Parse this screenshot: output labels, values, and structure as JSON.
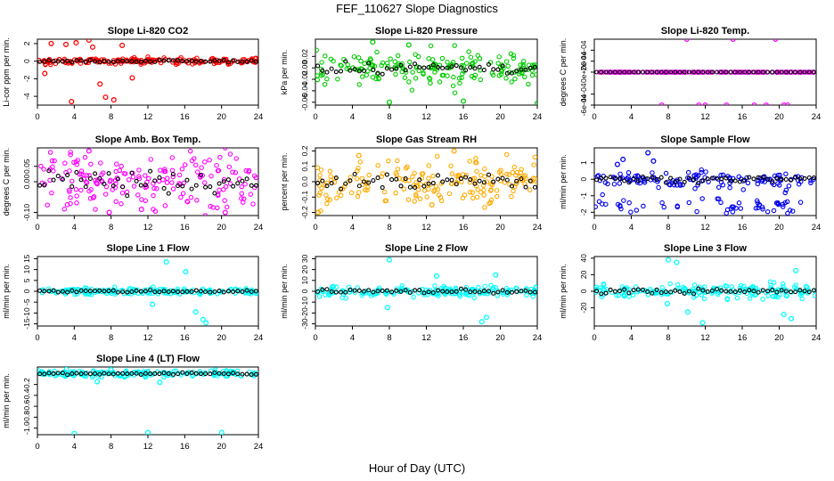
{
  "figure": {
    "title": "FEF_110627  Slope Diagnostics",
    "xlabel": "Hour of Day (UTC)"
  },
  "chart_data": [
    {
      "type": "scatter",
      "title": "Slope Li-820 CO2",
      "ylabel": "Li-cor ppm per min.",
      "color": "#ff0000",
      "xlim": [
        0,
        24
      ],
      "xticks": [
        0,
        4,
        8,
        12,
        16,
        20,
        24
      ],
      "ylim": [
        -5,
        2.5
      ],
      "yticks": [
        -4,
        -2,
        0,
        2
      ],
      "ytick_labels": [
        "-4",
        "-2",
        "0",
        "2"
      ],
      "noise": 0.18,
      "outliers": [
        [
          1.5,
          2.0
        ],
        [
          3.1,
          1.9
        ],
        [
          4.2,
          2.1
        ],
        [
          5.6,
          2.4
        ],
        [
          6.8,
          -2.6
        ],
        [
          7.4,
          -4.1
        ],
        [
          8.3,
          -4.4
        ],
        [
          3.7,
          -4.6
        ],
        [
          0.8,
          -1.4
        ],
        [
          6.0,
          1.6
        ],
        [
          9.2,
          1.8
        ],
        [
          10.3,
          -1.9
        ]
      ]
    },
    {
      "type": "scatter",
      "title": "Slope Li-820 Pressure",
      "ylabel": "kPa per min.",
      "color": "#00cc00",
      "xlim": [
        0,
        24
      ],
      "xticks": [
        0,
        4,
        8,
        12,
        16,
        20,
        24
      ],
      "ylim": [
        -0.065,
        0.05
      ],
      "yticks": [
        -0.06,
        -0.04,
        -0.02,
        0.0,
        0.02
      ],
      "ytick_labels": [
        "-0.06",
        "-0.04",
        "-0.02",
        "0.00",
        "0.02"
      ],
      "noise": 0.015,
      "outliers": [
        [
          8.0,
          -0.06
        ],
        [
          16.0,
          -0.058
        ],
        [
          24.0,
          -0.062
        ],
        [
          6.2,
          0.045
        ],
        [
          10.1,
          0.04
        ]
      ]
    },
    {
      "type": "scatter",
      "title": "Slope Li-820 Temp.",
      "ylabel": "degrees C per min.",
      "color": "#ff00ff",
      "xlim": [
        0,
        24
      ],
      "xticks": [
        0,
        4,
        8,
        12,
        16,
        20,
        24
      ],
      "ylim": [
        -0.0006,
        0.0006
      ],
      "yticks": [
        -0.0006,
        -0.0004,
        0.0,
        0.0002,
        0.0004
      ],
      "ytick_labels": [
        "-6e-04",
        "-4e-04",
        "0e+00",
        "2e-04",
        "4e-04"
      ],
      "noise": 0.0,
      "outliers": [
        [
          10.0,
          0.0006
        ],
        [
          15.0,
          0.0006
        ],
        [
          19.6,
          0.0006
        ],
        [
          7.3,
          -0.0006
        ],
        [
          11.3,
          -0.0006
        ],
        [
          12.0,
          -0.0006
        ],
        [
          14.3,
          -0.0006
        ],
        [
          17.3,
          -0.0006
        ],
        [
          18.6,
          -0.0006
        ],
        [
          20.5,
          -0.0006
        ],
        [
          20.9,
          -0.0006
        ]
      ]
    },
    {
      "type": "scatter",
      "title": "Slope Amb. Box Temp.",
      "ylabel": "degrees C per min.",
      "color": "#ff00ff",
      "xlim": [
        0,
        24
      ],
      "xticks": [
        0,
        4,
        8,
        12,
        16,
        20,
        24
      ],
      "ylim": [
        -0.11,
        0.11
      ],
      "yticks": [
        -0.1,
        0.0,
        0.05
      ],
      "ytick_labels": [
        "-0.10",
        "0.00",
        "0.05"
      ],
      "noise": 0.05,
      "outliers": [
        [
          5.6,
          0.1
        ],
        [
          11.3,
          -0.09
        ],
        [
          7.8,
          -0.1
        ],
        [
          20.4,
          -0.1
        ]
      ]
    },
    {
      "type": "scatter",
      "title": "Slope Gas Stream RH",
      "ylabel": "percent per min.",
      "color": "#ffaa00",
      "xlim": [
        0,
        24
      ],
      "xticks": [
        0,
        4,
        8,
        12,
        16,
        20,
        24
      ],
      "ylim": [
        -0.22,
        0.22
      ],
      "yticks": [
        -0.2,
        -0.1,
        0.0,
        0.1,
        0.2
      ],
      "ytick_labels": [
        "-0.2",
        "-0.1",
        "0.0",
        "0.1",
        "0.2"
      ],
      "noise": 0.07,
      "outliers": [
        [
          0.3,
          -0.2
        ],
        [
          15.0,
          0.2
        ],
        [
          4.7,
          0.17
        ],
        [
          12.6,
          -0.15
        ]
      ]
    },
    {
      "type": "scatter",
      "title": "Slope Sample Flow",
      "ylabel": "ml/min per min.",
      "color": "#0000ee",
      "xlim": [
        0,
        24
      ],
      "xticks": [
        0,
        4,
        8,
        12,
        16,
        20,
        24
      ],
      "ylim": [
        -2.2,
        1.9
      ],
      "yticks": [
        -2,
        -1,
        0,
        1
      ],
      "ytick_labels": [
        "-2",
        "-1",
        "0",
        "1"
      ],
      "noise": 0.25,
      "outliers": [
        [
          3.1,
          1.2
        ],
        [
          5.8,
          1.6
        ],
        [
          2.5,
          0.9
        ],
        [
          6.4,
          1.1
        ]
      ]
    },
    {
      "type": "scatter",
      "title": "Slope Line 1 Flow",
      "ylabel": "ml/min per min.",
      "color": "#00ffff",
      "xlim": [
        0,
        24
      ],
      "xticks": [
        0,
        4,
        8,
        12,
        16,
        20,
        24
      ],
      "ylim": [
        -16,
        16
      ],
      "yticks": [
        -15,
        -10,
        -5,
        0,
        5,
        10,
        15
      ],
      "ytick_labels": [
        "-15",
        "-10",
        "-5",
        "0",
        "5",
        "10",
        "15"
      ],
      "noise": 0.8,
      "outliers": [
        [
          14.0,
          13.5
        ],
        [
          18.0,
          -13.0
        ],
        [
          18.3,
          -14.5
        ],
        [
          12.5,
          -6.0
        ],
        [
          16.1,
          9.0
        ],
        [
          17.2,
          -9.5
        ]
      ]
    },
    {
      "type": "scatter",
      "title": "Slope Line 2 Flow",
      "ylabel": "ml/min per min.",
      "color": "#00ffff",
      "xlim": [
        0,
        24
      ],
      "xticks": [
        0,
        4,
        8,
        12,
        16,
        20,
        24
      ],
      "ylim": [
        -32,
        32
      ],
      "yticks": [
        -30,
        -20,
        -10,
        0,
        10,
        20,
        30
      ],
      "ytick_labels": [
        "-30",
        "-20",
        "-10",
        "0",
        "10",
        "20",
        "30"
      ],
      "noise": 2.5,
      "outliers": [
        [
          8.0,
          29.0
        ],
        [
          7.8,
          -15.0
        ],
        [
          18.0,
          -28.0
        ],
        [
          18.5,
          -24.0
        ],
        [
          13.1,
          14.0
        ],
        [
          19.5,
          15.0
        ]
      ]
    },
    {
      "type": "scatter",
      "title": "Slope Line 3 Flow",
      "ylabel": "ml/min per min.",
      "color": "#00ffff",
      "xlim": [
        0,
        24
      ],
      "xticks": [
        0,
        4,
        8,
        12,
        16,
        20,
        24
      ],
      "ylim": [
        -42,
        42
      ],
      "yticks": [
        -20,
        0,
        20,
        40
      ],
      "ytick_labels": [
        "-20",
        "0",
        "20",
        "40"
      ],
      "noise": 4.0,
      "outliers": [
        [
          8.0,
          38.0
        ],
        [
          8.9,
          35.0
        ],
        [
          7.9,
          -15.0
        ],
        [
          10.1,
          -25.0
        ],
        [
          11.7,
          -38.0
        ],
        [
          21.3,
          -33.0
        ],
        [
          20.5,
          -28.0
        ],
        [
          21.8,
          25.0
        ]
      ]
    },
    {
      "type": "scatter",
      "title": "Slope Line 4 (LT) Flow",
      "ylabel": "ml/min per min.",
      "color": "#00ffff",
      "xlim": [
        0,
        24
      ],
      "xticks": [
        0,
        4,
        8,
        12,
        16,
        20,
        24
      ],
      "ylim": [
        -1.12,
        0.12
      ],
      "yticks": [
        -1.0,
        -0.8,
        -0.6,
        -0.4,
        -0.2
      ],
      "ytick_labels": [
        "-1.0",
        "-0.8",
        "-0.6",
        "-0.4",
        "-0.2"
      ],
      "noise": 0.03,
      "outliers": [
        [
          4.0,
          -1.1
        ],
        [
          12.0,
          -1.08
        ],
        [
          20.0,
          -1.08
        ],
        [
          8.0,
          0.07
        ],
        [
          6.5,
          -0.15
        ],
        [
          13.3,
          -0.16
        ]
      ]
    }
  ]
}
